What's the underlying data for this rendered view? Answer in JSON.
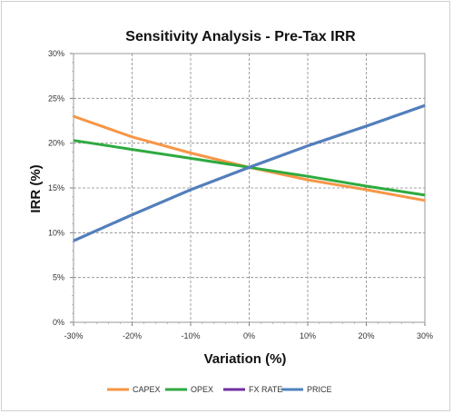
{
  "chart_data": {
    "type": "line",
    "title": "Sensitivity Analysis - Pre-Tax IRR",
    "xlabel": "Variation (%)",
    "ylabel": "IRR (%)",
    "x": [
      -30,
      -20,
      -10,
      0,
      10,
      20,
      30
    ],
    "x_tick_labels": [
      "-30%",
      "-20%",
      "-10%",
      "0%",
      "10%",
      "20%",
      "30%"
    ],
    "xlim": [
      -30,
      30
    ],
    "ylim": [
      0,
      30
    ],
    "y_tick_labels": [
      "0%",
      "5%",
      "10%",
      "15%",
      "20%",
      "25%",
      "30%"
    ],
    "y_ticks": [
      0,
      5,
      10,
      15,
      20,
      25,
      30
    ],
    "grid": true,
    "legend_position": "bottom",
    "series": [
      {
        "name": "CAPEX",
        "color": "#F79646",
        "values": [
          23.0,
          20.7,
          18.9,
          17.3,
          15.9,
          14.8,
          13.6
        ]
      },
      {
        "name": "OPEX",
        "color": "#2EAA3F",
        "values": [
          20.3,
          19.3,
          18.3,
          17.3,
          16.3,
          15.2,
          14.2
        ]
      },
      {
        "name": "FX RATE",
        "color": "#7030A0",
        "values": [
          9.1,
          12.0,
          14.8,
          17.3,
          19.7,
          21.9,
          24.2
        ]
      },
      {
        "name": "PRICE",
        "color": "#4F81BD",
        "values": [
          9.1,
          12.0,
          14.8,
          17.3,
          19.7,
          21.9,
          24.2
        ]
      }
    ]
  }
}
